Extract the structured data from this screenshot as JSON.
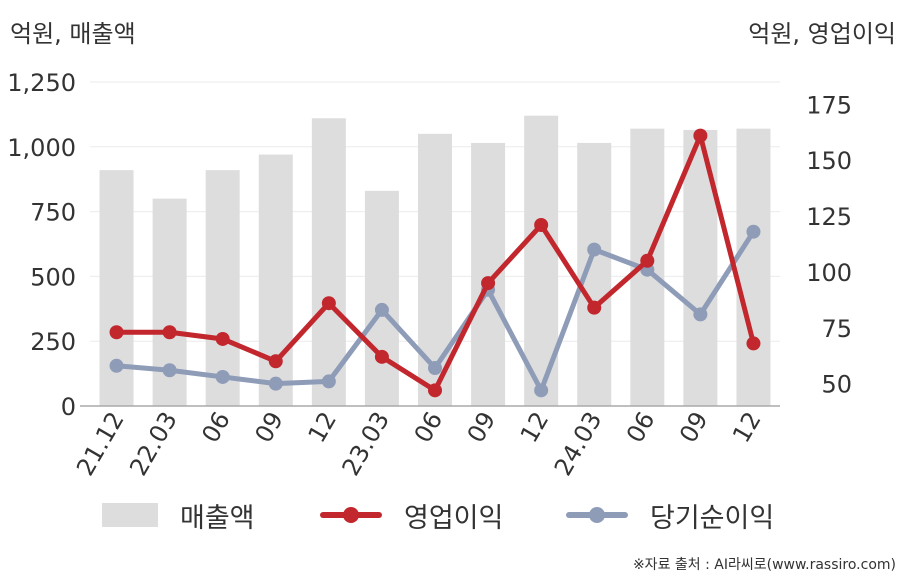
{
  "units": {
    "left": "억원, 매출액",
    "right": "억원, 영업이익"
  },
  "chart_data": {
    "type": "bar",
    "categories": [
      "21.12",
      "22.03",
      "06",
      "09",
      "12",
      "23.03",
      "06",
      "09",
      "12",
      "24.03",
      "06",
      "09",
      "12"
    ],
    "y_left": {
      "lim": [
        0,
        1250
      ],
      "ticks": [
        "0",
        "250",
        "500",
        "750",
        "1,000",
        "1,250"
      ]
    },
    "y_right": {
      "lim": [
        40,
        185
      ],
      "ticks": [
        "50",
        "75",
        "100",
        "125",
        "150",
        "175"
      ]
    },
    "series": [
      {
        "name": "매출액",
        "type": "bar",
        "axis": "left",
        "color": "#dddddd",
        "values": [
          910,
          800,
          910,
          970,
          1110,
          830,
          1050,
          1015,
          1120,
          1015,
          1070,
          1065,
          1070
        ]
      },
      {
        "name": "영업이익",
        "type": "line",
        "axis": "right",
        "color": "#c1272d",
        "values": [
          73,
          73,
          70,
          60,
          86,
          62,
          47,
          95,
          121,
          84,
          105,
          161,
          68
        ]
      },
      {
        "name": "당기순이익",
        "type": "line",
        "axis": "right",
        "color": "#8e9cb8",
        "values": [
          58,
          56,
          53,
          50,
          51,
          83,
          57,
          92,
          47,
          110,
          101,
          81,
          118
        ]
      }
    ]
  },
  "legend": [
    {
      "label": "매출액",
      "kind": "bar",
      "color": "#dddddd"
    },
    {
      "label": "영업이익",
      "kind": "line",
      "color": "#c1272d"
    },
    {
      "label": "당기순이익",
      "kind": "line",
      "color": "#8e9cb8"
    }
  ],
  "source": "※자료 출처 : AI라씨로(www.rassiro.com)"
}
